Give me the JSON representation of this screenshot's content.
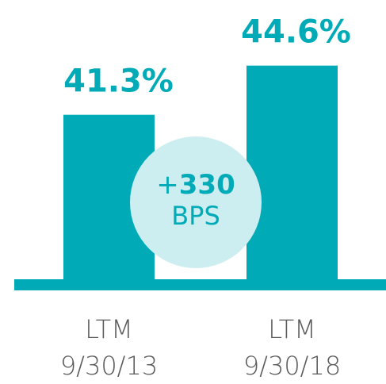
{
  "chart_data": {
    "type": "bar",
    "categories": [
      "LTM\n9/30/13",
      "LTM\n9/30/18"
    ],
    "values": [
      41.3,
      44.6
    ],
    "value_labels": [
      "41.3%",
      "44.6%"
    ],
    "color": "#00abb7",
    "ylim": [
      30,
      47
    ],
    "annotation": {
      "sign": "+",
      "number": "330",
      "unit": "BPS"
    }
  }
}
